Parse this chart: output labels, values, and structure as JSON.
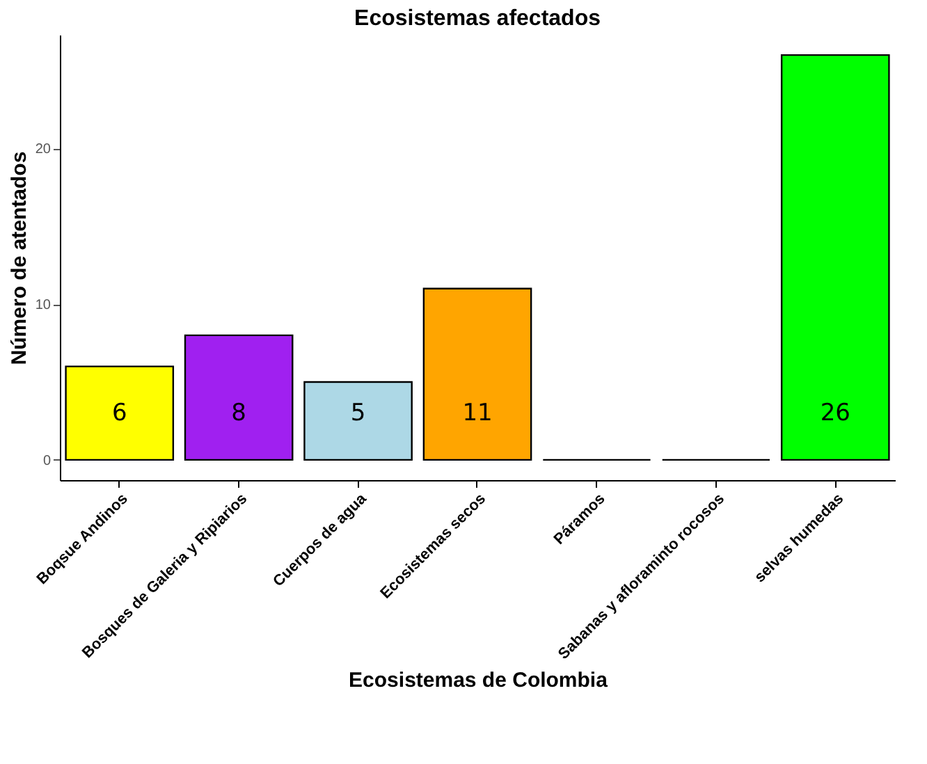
{
  "chart_data": {
    "type": "bar",
    "title": "Ecosistemas afectados",
    "xlabel": "Ecosistemas de Colombia",
    "ylabel": "Número de atentados",
    "categories": [
      "Boqsue Andinos",
      "Bosques de Galeria y Ripiarios",
      "Cuerpos de agua",
      "Ecosistemas secos",
      "Páramos",
      "Sabanas y afloraminto rocosos",
      "selvas humedas"
    ],
    "values": [
      6,
      8,
      5,
      11,
      0,
      0,
      26
    ],
    "colors": [
      "#ffff00",
      "#a020f0",
      "#add8e6",
      "#ffa500",
      "#000000",
      "#000000",
      "#00ff00"
    ],
    "value_labels": [
      "6",
      "8",
      "5",
      "11",
      null,
      null,
      "26"
    ],
    "ylim": [
      -1.3,
      27.3
    ],
    "yticks": [
      0,
      10,
      20
    ],
    "grid": false,
    "legend": false
  }
}
